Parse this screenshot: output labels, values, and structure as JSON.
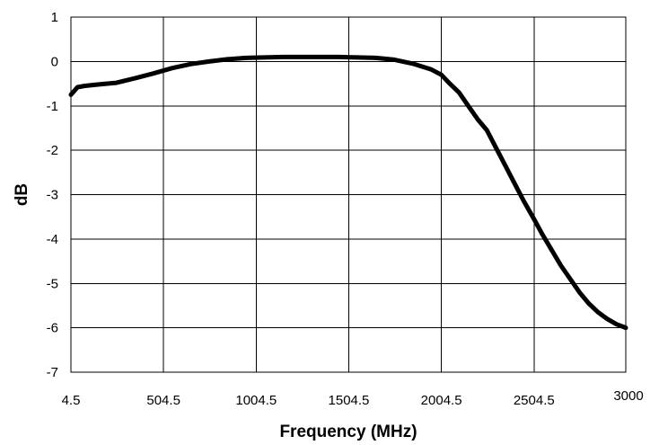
{
  "chart_data": {
    "type": "line",
    "title": "",
    "xlabel": "Frequency (MHz)",
    "ylabel": "dB",
    "xlim": [
      4.5,
      3000
    ],
    "ylim": [
      -7,
      1
    ],
    "x_ticks": [
      4.5,
      504.5,
      1004.5,
      1504.5,
      2004.5,
      2504.5,
      3000
    ],
    "x_tick_labels": [
      "4.5",
      "504.5",
      "1004.5",
      "1504.5",
      "2004.5",
      "2504.5",
      "3000"
    ],
    "y_ticks": [
      1,
      0,
      -1,
      -2,
      -3,
      -4,
      -5,
      -6,
      -7
    ],
    "y_tick_labels": [
      "1",
      "0",
      "-1",
      "-2",
      "-3",
      "-4",
      "-5",
      "-6",
      "-7"
    ],
    "grid": true,
    "legend": "none",
    "series": [
      {
        "color": "#000000",
        "x": [
          4.5,
          40,
          80,
          150,
          250,
          350,
          450,
          550,
          650,
          750,
          850,
          950,
          1050,
          1150,
          1250,
          1350,
          1450,
          1550,
          1650,
          1750,
          1850,
          1950,
          2004.5,
          2050,
          2100,
          2150,
          2200,
          2250,
          2300,
          2350,
          2400,
          2450,
          2504.5,
          2550,
          2600,
          2650,
          2700,
          2750,
          2800,
          2850,
          2900,
          2950,
          3000
        ],
        "y": [
          -0.75,
          -0.58,
          -0.55,
          -0.52,
          -0.48,
          -0.38,
          -0.27,
          -0.15,
          -0.06,
          0.0,
          0.05,
          0.08,
          0.09,
          0.1,
          0.1,
          0.1,
          0.1,
          0.09,
          0.08,
          0.04,
          -0.05,
          -0.18,
          -0.3,
          -0.5,
          -0.7,
          -1.0,
          -1.3,
          -1.55,
          -1.95,
          -2.35,
          -2.75,
          -3.15,
          -3.55,
          -3.9,
          -4.25,
          -4.6,
          -4.9,
          -5.2,
          -5.45,
          -5.65,
          -5.8,
          -5.92,
          -6.0
        ]
      }
    ]
  }
}
